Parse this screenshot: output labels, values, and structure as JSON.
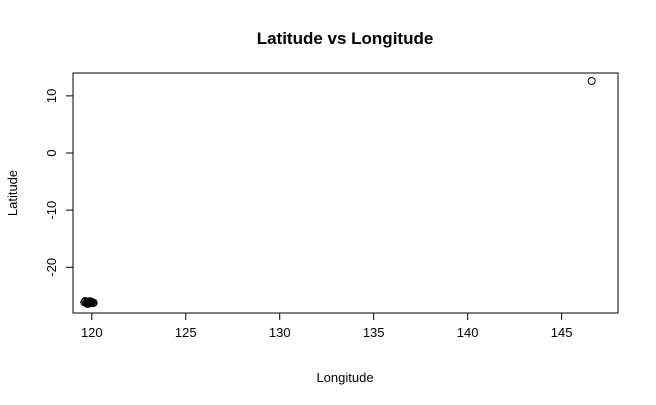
{
  "chart_data": {
    "type": "scatter",
    "title": "Latitude vs Longitude",
    "xlabel": "Longitude",
    "ylabel": "Latitude",
    "xlim": [
      119,
      148
    ],
    "ylim": [
      -28,
      14
    ],
    "x_ticks": [
      120,
      125,
      130,
      135,
      140,
      145
    ],
    "y_ticks": [
      10,
      0,
      -10,
      -20
    ],
    "x_tick_labels": [
      "120",
      "125",
      "130",
      "135",
      "140",
      "145"
    ],
    "y_tick_labels": [
      "10",
      "0",
      "-10",
      "-20"
    ],
    "grid": false,
    "legend": "none",
    "series": [
      {
        "marker": "open-circle",
        "x": [
          119.6,
          119.7,
          119.8,
          119.9,
          120.0,
          120.1,
          119.65,
          119.75,
          119.85,
          119.95,
          120.05,
          119.7,
          119.8,
          119.9,
          120.0,
          119.75,
          119.85,
          119.95,
          146.6
        ],
        "y": [
          -26.1,
          -26.2,
          -26.0,
          -26.3,
          -26.1,
          -26.2,
          -25.9,
          -26.4,
          -26.1,
          -26.0,
          -26.3,
          -26.2,
          -26.4,
          -25.95,
          -26.15,
          -26.05,
          -26.25,
          -26.1,
          12.6
        ]
      }
    ]
  }
}
